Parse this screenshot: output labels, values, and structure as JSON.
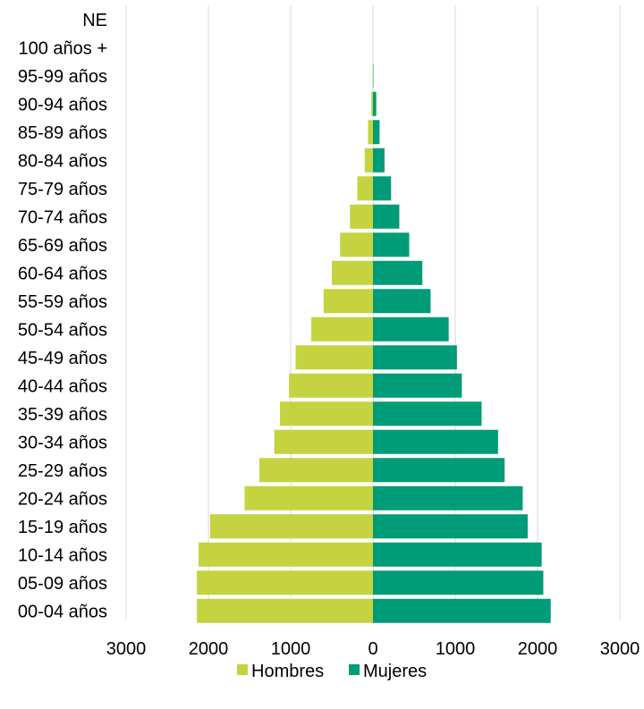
{
  "chart_data": {
    "type": "bar",
    "orientation": "horizontal",
    "categories": [
      "NE",
      "100 años +",
      "95-99 años",
      "90-94 años",
      "85-89 años",
      "80-84 años",
      "75-79 años",
      "70-74 años",
      "65-69 años",
      "60-64 años",
      "55-59 años",
      "50-54 años",
      "45-49 años",
      "40-44 años",
      "35-39 años",
      "30-34 años",
      "25-29 años",
      "20-24 años",
      "15-19 años",
      "10-14 años",
      "05-09 años",
      "00-04 años"
    ],
    "series": [
      {
        "name": "Hombres",
        "color": "#c4d33f",
        "values": [
          0,
          0,
          5,
          20,
          60,
          100,
          190,
          280,
          400,
          500,
          600,
          750,
          940,
          1020,
          1130,
          1200,
          1380,
          1560,
          1980,
          2120,
          2140,
          2140
        ]
      },
      {
        "name": "Mujeres",
        "color": "#009b77",
        "values": [
          0,
          0,
          5,
          40,
          80,
          140,
          220,
          320,
          440,
          600,
          700,
          920,
          1020,
          1080,
          1320,
          1520,
          1600,
          1820,
          1880,
          2050,
          2070,
          2160
        ]
      }
    ],
    "xlim": [
      -3000,
      3000
    ],
    "xticks": [
      -3000,
      -2000,
      -1000,
      0,
      1000,
      2000,
      3000
    ],
    "xtick_labels": [
      "3000",
      "2000",
      "1000",
      "0",
      "1000",
      "2000",
      "3000"
    ],
    "grid": true,
    "legend_position": "bottom"
  }
}
